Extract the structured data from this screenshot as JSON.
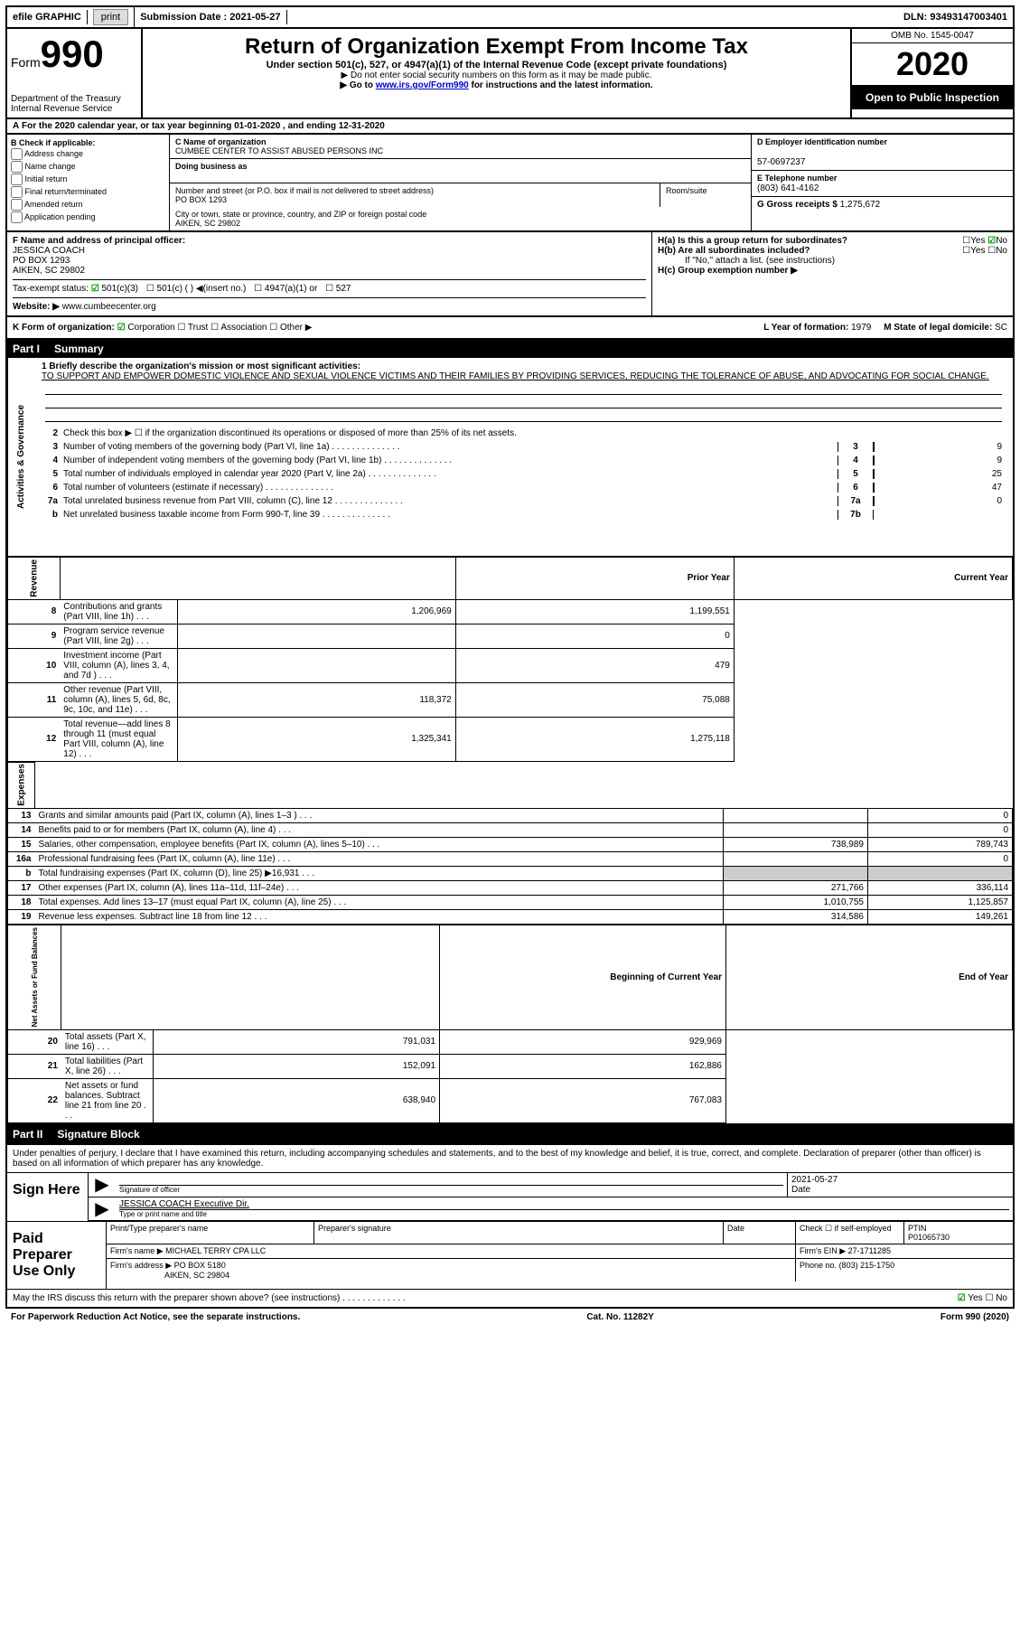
{
  "topbar": {
    "efile": "efile GRAPHIC",
    "print": "print",
    "submission_label": "Submission Date :",
    "submission_date": "2021-05-27",
    "dln_label": "DLN:",
    "dln": "93493147003401"
  },
  "header": {
    "form_prefix": "Form",
    "form_number": "990",
    "dept": "Department of the Treasury\nInternal Revenue Service",
    "title": "Return of Organization Exempt From Income Tax",
    "subtitle": "Under section 501(c), 527, or 4947(a)(1) of the Internal Revenue Code (except private foundations)",
    "note1": "▶ Do not enter social security numbers on this form as it may be made public.",
    "note2_pre": "▶ Go to ",
    "note2_link": "www.irs.gov/Form990",
    "note2_post": " for instructions and the latest information.",
    "omb": "OMB No. 1545-0047",
    "year": "2020",
    "inspection": "Open to Public Inspection"
  },
  "section_a": {
    "line_a": "For the 2020 calendar year, or tax year beginning 01-01-2020   , and ending 12-31-2020",
    "b_label": "B Check if applicable:",
    "b_opts": [
      "Address change",
      "Name change",
      "Initial return",
      "Final return/terminated",
      "Amended return",
      "Application pending"
    ],
    "c_name_label": "C Name of organization",
    "c_name": "CUMBEE CENTER TO ASSIST ABUSED PERSONS INC",
    "dba_label": "Doing business as",
    "dba": "",
    "street_label": "Number and street (or P.O. box if mail is not delivered to street address)",
    "street": "PO BOX 1293",
    "suite_label": "Room/suite",
    "city_label": "City or town, state or province, country, and ZIP or foreign postal code",
    "city": "AIKEN, SC  29802",
    "d_label": "D Employer identification number",
    "d_val": "57-0697237",
    "e_label": "E Telephone number",
    "e_val": "(803) 641-4162",
    "g_label": "G Gross receipts $",
    "g_val": "1,275,672"
  },
  "section_f": {
    "f_label": "F  Name and address of principal officer:",
    "f_name": "JESSICA COACH",
    "f_addr1": "PO BOX 1293",
    "f_addr2": "AIKEN, SC  29802",
    "tax_label": "Tax-exempt status:",
    "j_label": "Website: ▶",
    "j_val": "www.cumbeecenter.org",
    "ha_label": "H(a)  Is this a group return for subordinates?",
    "hb_label": "H(b)  Are all subordinates included?",
    "hb_note": "If \"No,\" attach a list. (see instructions)",
    "hc_label": "H(c)  Group exemption number ▶",
    "yes": "Yes",
    "no": "No"
  },
  "section_k": {
    "k_label": "K Form of organization:",
    "k_opts": [
      "Corporation",
      "Trust",
      "Association",
      "Other ▶"
    ],
    "l_label": "L Year of formation:",
    "l_val": "1979",
    "m_label": "M State of legal domicile:",
    "m_val": "SC"
  },
  "part1": {
    "header_num": "Part I",
    "header_title": "Summary",
    "mission_label": "1  Briefly describe the organization's mission or most significant activities:",
    "mission": "TO SUPPORT AND EMPOWER DOMESTIC VIOLENCE AND SEXUAL VIOLENCE VICTIMS AND THEIR FAMILIES BY PROVIDING SERVICES, REDUCING THE TOLERANCE OF ABUSE, AND ADVOCATING FOR SOCIAL CHANGE.",
    "line2": "Check this box ▶ ☐  if the organization discontinued its operations or disposed of more than 25% of its net assets.",
    "side_labels": [
      "Activities & Governance",
      "Revenue",
      "Expenses",
      "Net Assets or Fund Balances"
    ],
    "gov_lines": [
      {
        "n": "3",
        "d": "Number of voting members of the governing body (Part VI, line 1a)",
        "box": "3",
        "v": "9"
      },
      {
        "n": "4",
        "d": "Number of independent voting members of the governing body (Part VI, line 1b)",
        "box": "4",
        "v": "9"
      },
      {
        "n": "5",
        "d": "Total number of individuals employed in calendar year 2020 (Part V, line 2a)",
        "box": "5",
        "v": "25"
      },
      {
        "n": "6",
        "d": "Total number of volunteers (estimate if necessary)",
        "box": "6",
        "v": "47"
      },
      {
        "n": "7a",
        "d": "Total unrelated business revenue from Part VIII, column (C), line 12",
        "box": "7a",
        "v": "0"
      },
      {
        "n": "b",
        "d": "Net unrelated business taxable income from Form 990-T, line 39",
        "box": "7b",
        "v": ""
      }
    ],
    "col_headers": [
      "Prior Year",
      "Current Year"
    ],
    "rev_lines": [
      {
        "n": "8",
        "d": "Contributions and grants (Part VIII, line 1h)",
        "p": "1,206,969",
        "c": "1,199,551"
      },
      {
        "n": "9",
        "d": "Program service revenue (Part VIII, line 2g)",
        "p": "",
        "c": "0"
      },
      {
        "n": "10",
        "d": "Investment income (Part VIII, column (A), lines 3, 4, and 7d )",
        "p": "",
        "c": "479"
      },
      {
        "n": "11",
        "d": "Other revenue (Part VIII, column (A), lines 5, 6d, 8c, 9c, 10c, and 11e)",
        "p": "118,372",
        "c": "75,088"
      },
      {
        "n": "12",
        "d": "Total revenue—add lines 8 through 11 (must equal Part VIII, column (A), line 12)",
        "p": "1,325,341",
        "c": "1,275,118"
      }
    ],
    "exp_lines": [
      {
        "n": "13",
        "d": "Grants and similar amounts paid (Part IX, column (A), lines 1–3 )",
        "p": "",
        "c": "0"
      },
      {
        "n": "14",
        "d": "Benefits paid to or for members (Part IX, column (A), line 4)",
        "p": "",
        "c": "0"
      },
      {
        "n": "15",
        "d": "Salaries, other compensation, employee benefits (Part IX, column (A), lines 5–10)",
        "p": "738,989",
        "c": "789,743"
      },
      {
        "n": "16a",
        "d": "Professional fundraising fees (Part IX, column (A), line 11e)",
        "p": "",
        "c": "0"
      },
      {
        "n": "b",
        "d": "Total fundraising expenses (Part IX, column (D), line 25) ▶16,931",
        "p": "grey",
        "c": "grey"
      },
      {
        "n": "17",
        "d": "Other expenses (Part IX, column (A), lines 11a–11d, 11f–24e)",
        "p": "271,766",
        "c": "336,114"
      },
      {
        "n": "18",
        "d": "Total expenses. Add lines 13–17 (must equal Part IX, column (A), line 25)",
        "p": "1,010,755",
        "c": "1,125,857"
      },
      {
        "n": "19",
        "d": "Revenue less expenses. Subtract line 18 from line 12",
        "p": "314,586",
        "c": "149,261"
      }
    ],
    "na_headers": [
      "Beginning of Current Year",
      "End of Year"
    ],
    "na_lines": [
      {
        "n": "20",
        "d": "Total assets (Part X, line 16)",
        "p": "791,031",
        "c": "929,969"
      },
      {
        "n": "21",
        "d": "Total liabilities (Part X, line 26)",
        "p": "152,091",
        "c": "162,886"
      },
      {
        "n": "22",
        "d": "Net assets or fund balances. Subtract line 21 from line 20",
        "p": "638,940",
        "c": "767,083"
      }
    ]
  },
  "part2": {
    "header_num": "Part II",
    "header_title": "Signature Block",
    "declaration": "Under penalties of perjury, I declare that I have examined this return, including accompanying schedules and statements, and to the best of my knowledge and belief, it is true, correct, and complete. Declaration of preparer (other than officer) is based on all information of which preparer has any knowledge.",
    "sign_here": "Sign Here",
    "sig_officer_label": "Signature of officer",
    "sig_date_label": "Date",
    "sig_date": "2021-05-27",
    "officer_name": "JESSICA COACH  Executive Dir.",
    "officer_name_label": "Type or print name and title",
    "paid_label": "Paid Preparer Use Only",
    "prep_name_label": "Print/Type preparer's name",
    "prep_sig_label": "Preparer's signature",
    "date_label": "Date",
    "self_emp": "Check ☐ if self-employed",
    "ptin_label": "PTIN",
    "ptin": "P01065730",
    "firm_name_label": "Firm's name    ▶",
    "firm_name": "MICHAEL TERRY CPA LLC",
    "firm_ein_label": "Firm's EIN ▶",
    "firm_ein": "27-1711285",
    "firm_addr_label": "Firm's address ▶",
    "firm_addr": "PO BOX 5180",
    "firm_city": "AIKEN, SC  29804",
    "phone_label": "Phone no.",
    "phone": "(803) 215-1750",
    "discuss": "May the IRS discuss this return with the preparer shown above? (see instructions)",
    "paperwork": "For Paperwork Reduction Act Notice, see the separate instructions.",
    "cat": "Cat. No. 11282Y",
    "form_footer": "Form 990 (2020)"
  },
  "colors": {
    "link": "#0000cc",
    "check": "#009900",
    "grey": "#cccccc"
  }
}
